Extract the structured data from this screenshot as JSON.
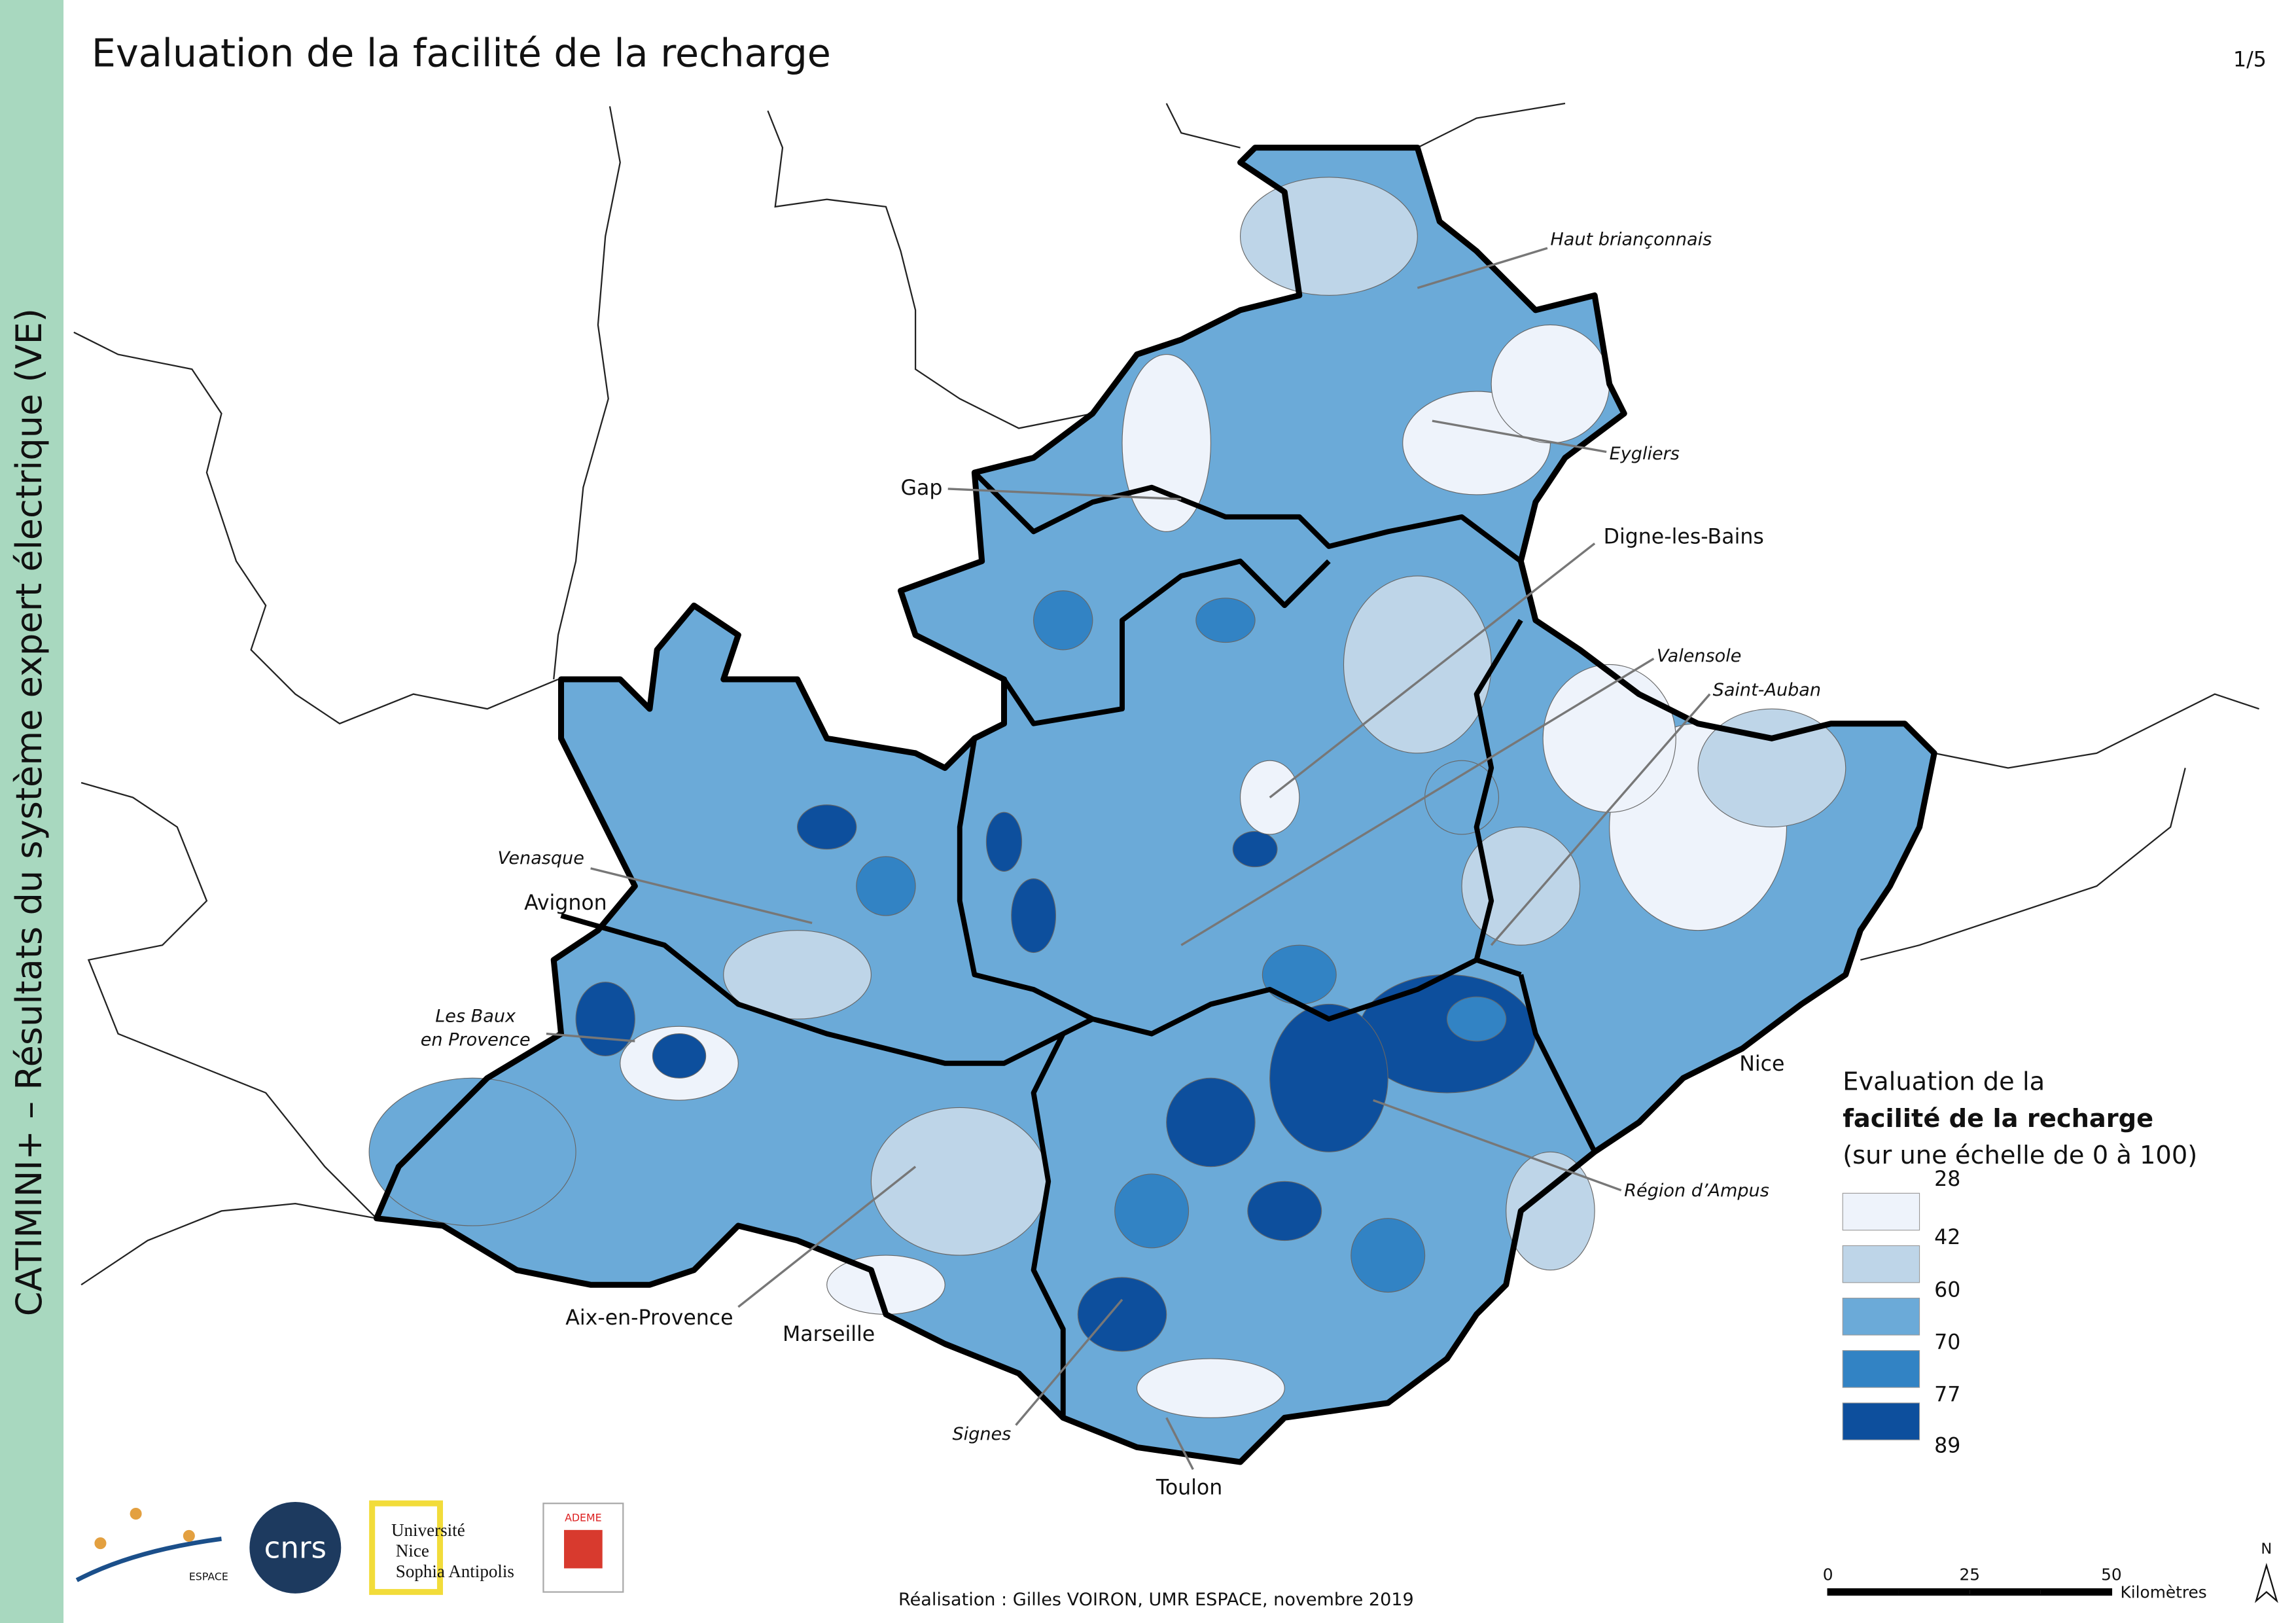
{
  "header": {
    "title": "Evaluation de la facilité de la recharge",
    "page": "1/5"
  },
  "sidebar": "CATIMINI+ – Résultats du système expert électrique (VE)",
  "places": [
    {
      "lines": [
        "Haut briançonnais"
      ]
    },
    {
      "lines": [
        "Eygliers"
      ]
    },
    {
      "lines": [
        "Gap"
      ]
    },
    {
      "lines": [
        "Digne-les-Bains"
      ]
    },
    {
      "lines": [
        "Valensole"
      ]
    },
    {
      "lines": [
        "Saint-Auban"
      ]
    },
    {
      "lines": [
        "Venasque"
      ]
    },
    {
      "lines": [
        "Avignon"
      ]
    },
    {
      "lines": [
        "Les Baux",
        "en Provence"
      ]
    },
    {
      "lines": [
        "Nice"
      ]
    },
    {
      "lines": [
        "Région d’Ampus"
      ]
    },
    {
      "lines": [
        "Aix-en-Provence"
      ]
    },
    {
      "lines": [
        "Marseille"
      ]
    },
    {
      "lines": [
        "Signes"
      ]
    },
    {
      "lines": [
        "Toulon"
      ]
    }
  ],
  "legend": {
    "title_lines": [
      "Evaluation de la",
      "facilité de la recharge",
      "(sur une échelle de 0 à 100)"
    ],
    "breaks": [
      28,
      42,
      60,
      70,
      77,
      89
    ],
    "colors": [
      "#eef3fb",
      "#bed5e8",
      "#6baad8",
      "#3283c4",
      "#0d4f9d"
    ]
  },
  "scale_bar": {
    "ticks": [
      0,
      25,
      50
    ],
    "unit": "Kilomètres"
  },
  "north": "N",
  "credit": "Réalisation : Gilles VOIRON, UMR ESPACE, novembre 2019",
  "logos": {
    "espace": "ESPACE",
    "cnrs": "cnrs",
    "university": [
      "Université",
      "Nice",
      "Sophia Antipolis"
    ],
    "ademe": "ADEME"
  }
}
